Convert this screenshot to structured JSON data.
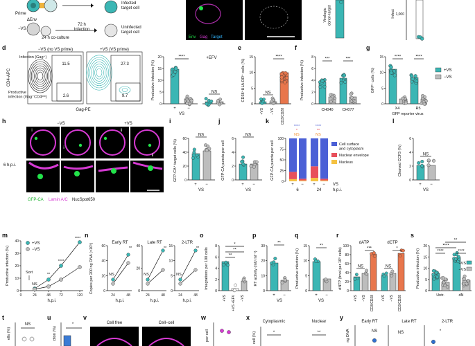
{
  "colors": {
    "teal": "#3bb6b4",
    "grey": "#bdbdbd",
    "magenta": "#d63ad3",
    "green": "#22e34a",
    "blue_stack": "#4b60d6",
    "red_stack": "#e8505b",
    "yellow_stack": "#f5c242",
    "orange": "#e8764c",
    "sig_blue": "#5a6ad6",
    "sig_red": "#e8505b",
    "sig_orange": "#f28e2c"
  },
  "top": {
    "prime_label": "Prime",
    "denv_label": "ΔEnv",
    "novs_label": "−VS",
    "h72_label": "72 h",
    "infection_label": "Infection",
    "coculture_label": "24 h co-culture",
    "infected_label": "Infected\ntarget cell",
    "uninfected_label": "Uninfected\ntarget cell",
    "micro_legend": [
      "Env",
      "Gag",
      "Target"
    ],
    "virologic_label": "Virologic\ndonor-target",
    "infect_label": "Infect",
    "tick_1000": "1,000"
  },
  "panels": {
    "d": "d",
    "e": "e",
    "f": "f",
    "g": "g",
    "h": "h",
    "i": "i",
    "j": "j",
    "k": "k",
    "l": "l",
    "m": "m",
    "n": "n",
    "o": "o",
    "p": "p",
    "q": "q",
    "r": "r",
    "s": "s",
    "t": "t",
    "u": "u",
    "v": "v",
    "w": "w",
    "x": "x",
    "y": "y"
  },
  "d": {
    "title_novs": "−VS (no VS prime)",
    "title_vs": "+VS (VS prime)",
    "infection_gate": "Infection (Gag⁺)",
    "productive_gate": "Productive\ninfection (Gag⁺CD4ˡᵒʷ)",
    "ylabel": "CD4-APC",
    "xlabel": "Gag-PE",
    "gate_novs_top": "11.5",
    "gate_novs_bot": "2.6",
    "gate_vs_top": "27.3",
    "gate_vs_bot": "9.7",
    "bar_ylabel": "Productive infection (%)",
    "bar_xlabel": "VS",
    "sig_main": "****",
    "efv_label": "+EFV",
    "efv_sig": "NS",
    "ticks_y": [
      "0",
      "5",
      "10",
      "15",
      "20"
    ],
    "cat_plus": "+",
    "cat_minus": "−"
  },
  "e": {
    "ylabel": "CD38⁺HLA-DR⁺ cells (%)",
    "ticks_y": [
      "0",
      "5",
      "10",
      "15"
    ],
    "categories": [
      "+VS",
      "−VS",
      "CD3/CD28"
    ],
    "sig1": "NS",
    "sig2": "****"
  },
  "f": {
    "ylabel": "Productive infection (%)",
    "ticks_y": [
      "0",
      "2",
      "4",
      "6",
      "8"
    ],
    "groups": [
      "CH040",
      "CH077"
    ],
    "sig": [
      "***",
      "***"
    ]
  },
  "g": {
    "ylabel": "GFP⁺ cells (%)",
    "ticks_y": [
      "0",
      "5",
      "10",
      "15"
    ],
    "groups": [
      "X4",
      "R5"
    ],
    "xlabel": "GFP reporter virus",
    "sig": [
      "****",
      "****"
    ],
    "legend": [
      "+VS",
      "−VS"
    ]
  },
  "h": {
    "label_novs": "−VS",
    "label_vs": "+VS",
    "hpi": "6 h.p.i.",
    "roman": [
      "i",
      "ii",
      "i",
      "ii"
    ],
    "legend": [
      "GFP-CA",
      "Lamin A/C",
      "NucSpot650"
    ]
  },
  "i": {
    "ylabel": "GFP-CA⁺ target cells (%)",
    "ticks_y": [
      "0",
      "20",
      "40",
      "60"
    ],
    "sig": "NS",
    "xlabel": "VS",
    "cat_plus": "+",
    "cat_minus": "−"
  },
  "j": {
    "ylabel": "GFP-CA puncta per cell",
    "ticks_y": [
      "0",
      "2",
      "4",
      "6"
    ],
    "sig": "NS",
    "xlabel": "VS",
    "cat_plus": "+",
    "cat_minus": "−"
  },
  "k": {
    "ylabel": "GFP-CA puncta per cell",
    "ticks_y": [
      "0",
      "25",
      "50",
      "75",
      "100"
    ],
    "legend": [
      "Cell surface\nand cytoplasm",
      "Nuclear envelope",
      "Nucleus"
    ],
    "sig_top": [
      "****",
      "****"
    ],
    "sig_mid": [
      "*",
      "**"
    ],
    "sig_bot": [
      "NS",
      "NS"
    ],
    "xlabel_vs": "VS",
    "xlabel_hpi": "h.p.i.",
    "times": [
      "6",
      "24"
    ],
    "cat_plus": "+",
    "cat_minus": "−"
  },
  "l": {
    "ylabel": "Cleaved CCF3 (%)",
    "ticks_y": [
      "0",
      "2",
      "4",
      "6"
    ],
    "sig": "NS",
    "xlabel": "VS",
    "cat_plus": "+",
    "cat_minus": "−"
  },
  "m": {
    "ylabel": "Productive infection (%)",
    "ticks_y": [
      "0",
      "10",
      "20",
      "30",
      "40"
    ],
    "ticks_x": [
      "0",
      "24",
      "48",
      "72",
      "120"
    ],
    "xlabel": "h.p.i.",
    "legend": [
      "+VS",
      "−VS"
    ],
    "sort_label": "Sort",
    "sig": [
      "NS",
      "**",
      "****",
      "****"
    ]
  },
  "n": {
    "ylabel": "Copies per 200 ng DNA (×10⁵)",
    "titles": [
      "Early RT",
      "Late RT",
      "2-LTR"
    ],
    "ticks_x": [
      "24",
      "48"
    ],
    "xlabel": "h.p.i.",
    "sig_ns": "NS",
    "sig_star": "**",
    "ticks_y1": [
      "0",
      "20",
      "40",
      "60"
    ],
    "ticks_y2": [
      "0",
      "20",
      "40"
    ],
    "ticks_y3": [
      "0",
      "5",
      "10",
      "15"
    ]
  },
  "o": {
    "ylabel": "Integrations per 100 cells",
    "ticks_y": [
      "0",
      "2",
      "4",
      "6",
      "8"
    ],
    "categories": [
      "+VS",
      "+VS +EFV",
      "−VS"
    ],
    "sig": [
      "**",
      "**",
      "*"
    ]
  },
  "p": {
    "ylabel": "RT activity (mU ml⁻¹)",
    "ticks_y": [
      "0",
      "10",
      "20",
      "30"
    ],
    "sig": "**",
    "xlabel": "VS",
    "cat_plus": "+",
    "cat_minus": "−"
  },
  "q": {
    "ylabel": "Productive infection (%)",
    "ticks_y": [
      "0",
      "5",
      "10",
      "15"
    ],
    "sig": "**",
    "xlabel": "VS",
    "cat_plus": "+",
    "cat_minus": "−"
  },
  "r": {
    "ylabel": "dNTP (fmol per 10⁶ cells)",
    "titles": [
      "dATP",
      "dCTP"
    ],
    "ticks_y": [
      "0",
      "20",
      "40",
      "60",
      "80",
      "100"
    ],
    "categories": [
      "+VS",
      "−VS",
      "CD3/CD28"
    ],
    "sig": [
      "NS",
      "***",
      "NS",
      "*"
    ]
  },
  "s": {
    "ylabel": "Productive infection (%)",
    "ticks_y": [
      "0",
      "5",
      "10",
      "15",
      "20"
    ],
    "categories": [
      "Untr.",
      "dN"
    ],
    "legend": [
      "+VS",
      "−VS"
    ],
    "sig": [
      "****",
      "****",
      "****",
      "**"
    ]
  },
  "bottom": {
    "t_ylabel": "ells (%)",
    "t_sig": "NS",
    "u_ylabel": "ction (%)",
    "u_sig": "*",
    "v_left": "Cell free",
    "v_right": "Cell–cell",
    "w_ylabel": "per cell",
    "x_title1": "Cytoplasmic",
    "x_title2": "Nuclear",
    "x_ylabel": "cell (%)",
    "x_sig1": "*",
    "x_sig2": "**",
    "y_ylabel": "ng DNA",
    "y_titles": [
      "Early RT",
      "Late RT",
      "2-LTR"
    ],
    "y_sig": [
      "NS",
      "NS",
      "*"
    ]
  }
}
